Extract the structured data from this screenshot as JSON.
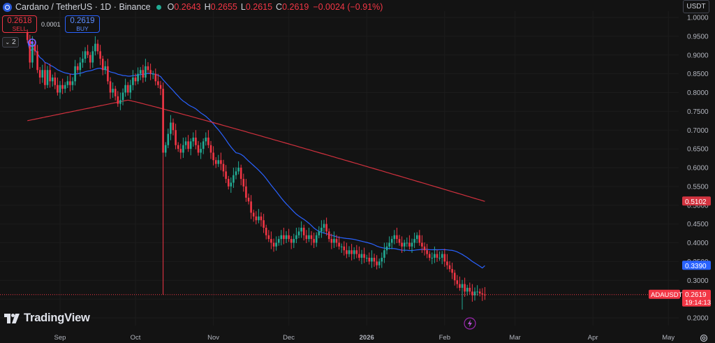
{
  "header": {
    "title": "Cardano / TetherUS · 1D · Binance",
    "open_label": "O",
    "open": "0.2643",
    "high_label": "H",
    "high": "0.2655",
    "low_label": "L",
    "low": "0.2615",
    "close_label": "C",
    "close": "0.2619",
    "change": "−0.0024 (−0.91%)"
  },
  "trade": {
    "sell_price": "0.2618",
    "sell_label": "SELL",
    "buy_price": "0.2619",
    "buy_label": "BUY",
    "spread": "0.0001"
  },
  "indicators_collapse": "2",
  "currency_button": "USDT",
  "brand": "TradingView",
  "colors": {
    "background": "#131313",
    "up": "#22ab94",
    "down": "#f23645",
    "ma_fast": "#2962ff",
    "ma_slow": "#f23645",
    "text": "#d1d4dc"
  },
  "chart_data": {
    "type": "candlestick",
    "symbol": "ADAUSDT",
    "interval": "1D",
    "ylim": [
      0.18,
      1.0
    ],
    "ytick_labels": [
      "1.0000",
      "0.9500",
      "0.9000",
      "0.8500",
      "0.8000",
      "0.7500",
      "0.7000",
      "0.6500",
      "0.6000",
      "0.5500",
      "0.5000",
      "0.4500",
      "0.4000",
      "0.3500",
      "0.3000",
      "0.2500",
      "0.2000"
    ],
    "xtick_labels": [
      "Sep",
      "Oct",
      "Nov",
      "Dec",
      "2026",
      "Feb",
      "Mar",
      "Apr",
      "May"
    ],
    "xtick_dates": [
      "2025-09-01",
      "2025-10-01",
      "2025-11-01",
      "2025-12-01",
      "2026-01-01",
      "2026-02-01",
      "2026-03-01",
      "2026-04-01",
      "2026-05-01"
    ],
    "x_start_date": "2025-08-18",
    "x_end_date": "2026-05-12",
    "first_candle_date": "2025-08-19",
    "closes": [
      0.94,
      0.88,
      0.93,
      0.91,
      0.86,
      0.84,
      0.86,
      0.82,
      0.86,
      0.83,
      0.84,
      0.82,
      0.8,
      0.82,
      0.81,
      0.82,
      0.83,
      0.82,
      0.83,
      0.87,
      0.86,
      0.88,
      0.89,
      0.91,
      0.9,
      0.88,
      0.91,
      0.93,
      0.91,
      0.89,
      0.86,
      0.87,
      0.83,
      0.8,
      0.81,
      0.79,
      0.77,
      0.78,
      0.8,
      0.82,
      0.8,
      0.82,
      0.84,
      0.83,
      0.85,
      0.86,
      0.84,
      0.87,
      0.86,
      0.85,
      0.85,
      0.83,
      0.82,
      0.81,
      0.64,
      0.66,
      0.69,
      0.72,
      0.7,
      0.66,
      0.65,
      0.64,
      0.66,
      0.67,
      0.65,
      0.67,
      0.68,
      0.66,
      0.64,
      0.65,
      0.67,
      0.68,
      0.66,
      0.64,
      0.62,
      0.61,
      0.62,
      0.61,
      0.59,
      0.57,
      0.55,
      0.56,
      0.58,
      0.59,
      0.6,
      0.57,
      0.55,
      0.52,
      0.51,
      0.48,
      0.47,
      0.46,
      0.47,
      0.46,
      0.44,
      0.42,
      0.41,
      0.4,
      0.39,
      0.4,
      0.41,
      0.42,
      0.41,
      0.42,
      0.41,
      0.4,
      0.41,
      0.42,
      0.43,
      0.44,
      0.42,
      0.41,
      0.42,
      0.41,
      0.4,
      0.42,
      0.43,
      0.44,
      0.45,
      0.43,
      0.41,
      0.4,
      0.41,
      0.4,
      0.39,
      0.39,
      0.38,
      0.37,
      0.38,
      0.37,
      0.38,
      0.37,
      0.36,
      0.37,
      0.36,
      0.36,
      0.35,
      0.36,
      0.35,
      0.34,
      0.35,
      0.36,
      0.38,
      0.39,
      0.4,
      0.41,
      0.42,
      0.41,
      0.4,
      0.39,
      0.4,
      0.4,
      0.39,
      0.4,
      0.41,
      0.42,
      0.4,
      0.39,
      0.38,
      0.37,
      0.36,
      0.36,
      0.37,
      0.36,
      0.36,
      0.37,
      0.35,
      0.34,
      0.33,
      0.32,
      0.3,
      0.29,
      0.28,
      0.29,
      0.27,
      0.28,
      0.27,
      0.26,
      0.27,
      0.27,
      0.265,
      0.262,
      0.2619
    ],
    "ma_fast_last": 0.339,
    "ma_slow_last": 0.5102,
    "last_price": 0.2619,
    "last_price_label": "0.2619",
    "countdown": "19:14:13",
    "ma_fast_label": "0.3390",
    "ma_slow_label": "0.5102"
  }
}
